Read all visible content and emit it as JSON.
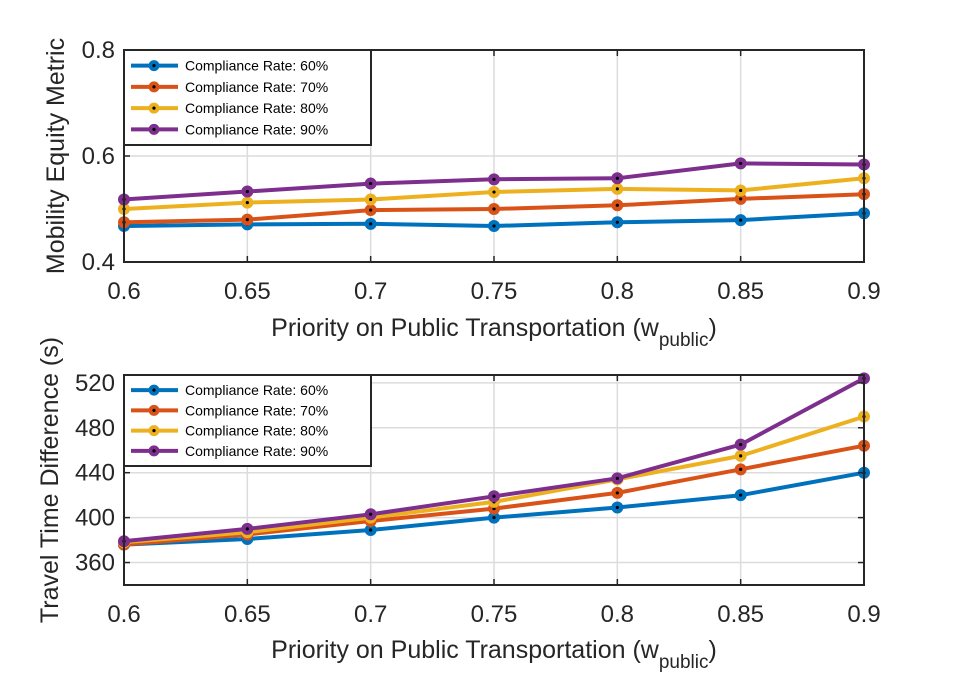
{
  "colors": {
    "Compliance Rate: 60%": "#0072BD",
    "Compliance Rate: 70%": "#D95319",
    "Compliance Rate: 80%": "#EDB120",
    "Compliance Rate: 90%": "#7E2F8E",
    "marker_dot": "#000000",
    "grid": "#dcdcdc",
    "axis": "#262626"
  },
  "chart_data": [
    {
      "type": "line",
      "ylabel": "Mobility Equity Metric",
      "xlabel_main": "Priority on Public Transportation (w",
      "xlabel_sub": "public",
      "xlabel_close": ")",
      "x": [
        0.6,
        0.65,
        0.7,
        0.75,
        0.8,
        0.85,
        0.9
      ],
      "x_tick_labels": [
        "0.6",
        "0.65",
        "0.7",
        "0.75",
        "0.8",
        "0.85",
        "0.9"
      ],
      "xlim": [
        0.6,
        0.9
      ],
      "ylim": [
        0.4,
        0.8
      ],
      "y_ticks": [
        0.4,
        0.6,
        0.8
      ],
      "y_tick_labels": [
        "0.4",
        "0.6",
        "0.8"
      ],
      "grid": true,
      "legend_position": "top-left",
      "series": [
        {
          "name": "Compliance Rate: 60%",
          "values": [
            0.468,
            0.471,
            0.472,
            0.468,
            0.475,
            0.479,
            0.492
          ]
        },
        {
          "name": "Compliance Rate: 70%",
          "values": [
            0.475,
            0.48,
            0.498,
            0.5,
            0.507,
            0.519,
            0.528
          ]
        },
        {
          "name": "Compliance Rate: 80%",
          "values": [
            0.5,
            0.512,
            0.518,
            0.532,
            0.538,
            0.535,
            0.558
          ]
        },
        {
          "name": "Compliance Rate: 90%",
          "values": [
            0.518,
            0.533,
            0.548,
            0.556,
            0.558,
            0.586,
            0.584
          ]
        }
      ]
    },
    {
      "type": "line",
      "ylabel": "Travel Time Difference (s)",
      "xlabel_main": "Priority on Public Transportation (w",
      "xlabel_sub": "public",
      "xlabel_close": ")",
      "x": [
        0.6,
        0.65,
        0.7,
        0.75,
        0.8,
        0.85,
        0.9
      ],
      "x_tick_labels": [
        "0.6",
        "0.65",
        "0.7",
        "0.75",
        "0.8",
        "0.85",
        "0.9"
      ],
      "xlim": [
        0.6,
        0.9
      ],
      "ylim": [
        340,
        527
      ],
      "y_ticks": [
        360,
        400,
        440,
        480,
        520
      ],
      "y_tick_labels": [
        "360",
        "400",
        "440",
        "480",
        "520"
      ],
      "grid": true,
      "legend_position": "top-left",
      "series": [
        {
          "name": "Compliance Rate: 60%",
          "values": [
            376,
            381,
            389,
            400,
            409,
            420,
            440
          ]
        },
        {
          "name": "Compliance Rate: 70%",
          "values": [
            376,
            385,
            397,
            408,
            422,
            443,
            464
          ]
        },
        {
          "name": "Compliance Rate: 80%",
          "values": [
            378,
            387,
            400,
            414,
            434,
            455,
            490
          ]
        },
        {
          "name": "Compliance Rate: 90%",
          "values": [
            379,
            390,
            403,
            419,
            435,
            465,
            524
          ]
        }
      ]
    }
  ]
}
